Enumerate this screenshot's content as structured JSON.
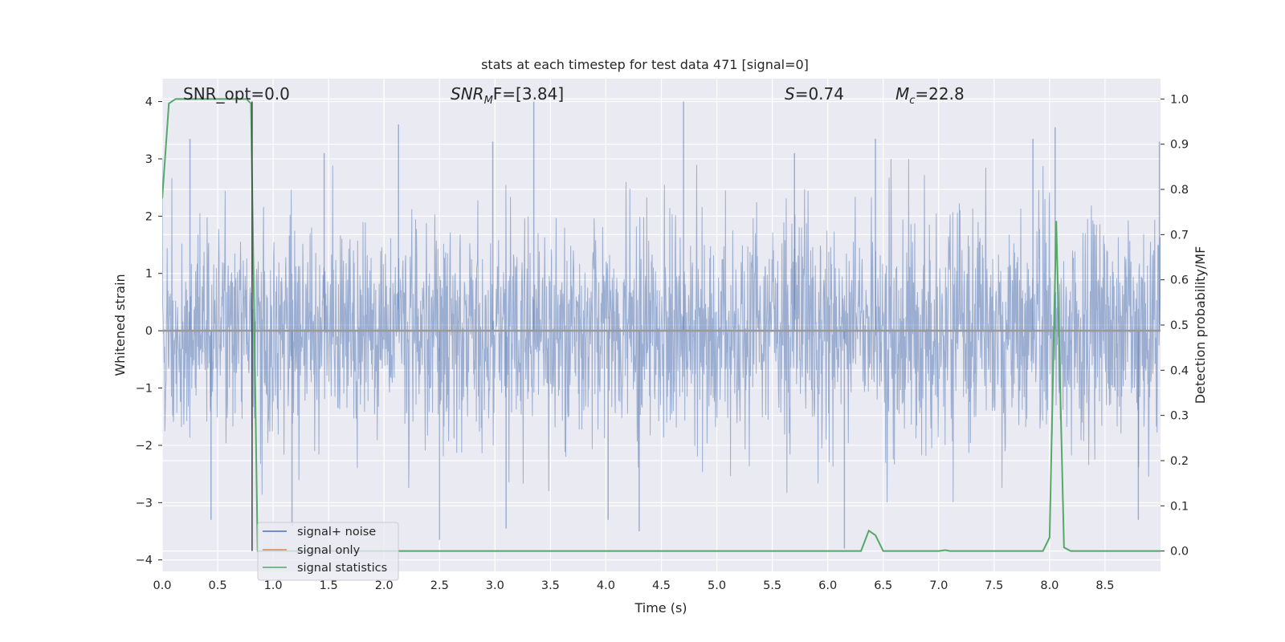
{
  "chart_data": {
    "type": "line",
    "title": "stats at each timestep for test data 471 [signal=0]",
    "xlabel": "Time (s)",
    "ylabel_left": "Whitened strain",
    "ylabel_right": "Detection probability/MF",
    "xlim": [
      0.0,
      9.0
    ],
    "ylim_left": [
      -4.2,
      4.4
    ],
    "ylim_right": [
      -0.045,
      1.045
    ],
    "grid": true,
    "x_ticks": [
      "0.0",
      "0.5",
      "1.0",
      "1.5",
      "2.0",
      "2.5",
      "3.0",
      "3.5",
      "4.0",
      "4.5",
      "5.0",
      "5.5",
      "6.0",
      "6.5",
      "7.0",
      "7.5",
      "8.0",
      "8.5"
    ],
    "y_ticks_left": [
      "−4",
      "−3",
      "−2",
      "−1",
      "0",
      "1",
      "2",
      "3",
      "4"
    ],
    "y_ticks_right": [
      "0.0",
      "0.1",
      "0.2",
      "0.3",
      "0.4",
      "0.5",
      "0.6",
      "0.7",
      "0.8",
      "0.9",
      "1.0"
    ],
    "legend_position": "lower-left",
    "annotations": {
      "snr_opt": "SNR_opt=0.0",
      "snr_mf_prefix": "SNR",
      "snr_mf_sub": "M",
      "snr_mf_suffix": "F=[3.84]",
      "s_prefix": "S",
      "s_value": "=0.74",
      "mc_prefix": "M",
      "mc_sub": "c",
      "mc_value": "=22.8"
    },
    "vline_x": 0.81,
    "series": [
      {
        "name": "signal+ noise",
        "color": "#4c72b0",
        "axis": "left",
        "kind": "noise",
        "approx_std": 0.95,
        "extreme_spikes": [
          {
            "x": 0.25,
            "y": 3.35
          },
          {
            "x": 1.46,
            "y": 3.1
          },
          {
            "x": 2.13,
            "y": 3.6
          },
          {
            "x": 2.98,
            "y": 3.3
          },
          {
            "x": 3.35,
            "y": 4.0
          },
          {
            "x": 4.7,
            "y": 4.0
          },
          {
            "x": 5.7,
            "y": 3.1
          },
          {
            "x": 6.43,
            "y": 3.35
          },
          {
            "x": 7.85,
            "y": 3.35
          },
          {
            "x": 8.05,
            "y": 3.55
          },
          {
            "x": 8.99,
            "y": 3.3
          },
          {
            "x": 0.44,
            "y": -3.3
          },
          {
            "x": 1.17,
            "y": -3.4
          },
          {
            "x": 2.5,
            "y": -3.65
          },
          {
            "x": 3.1,
            "y": -3.45
          },
          {
            "x": 4.02,
            "y": -3.3
          },
          {
            "x": 4.3,
            "y": -3.5
          },
          {
            "x": 6.15,
            "y": -3.8
          },
          {
            "x": 8.8,
            "y": -3.3
          }
        ]
      },
      {
        "name": "signal only",
        "color": "#dd8452",
        "axis": "left",
        "x": [
          0.0,
          9.0
        ],
        "y": [
          0.0,
          0.0
        ]
      },
      {
        "name": "signal statistics",
        "color": "#55a868",
        "axis": "right",
        "x": [
          0.0,
          0.06,
          0.12,
          0.2,
          0.3,
          0.5,
          0.7,
          0.76,
          0.8,
          0.83,
          0.86,
          0.9,
          1.0,
          6.3,
          6.37,
          6.43,
          6.5,
          7.0,
          7.06,
          7.1,
          7.94,
          8.0,
          8.06,
          8.13,
          8.19,
          9.0
        ],
        "y": [
          0.78,
          0.99,
          1.0,
          1.0,
          1.0,
          1.0,
          1.0,
          1.0,
          0.99,
          0.5,
          0.0,
          0.0,
          0.0,
          0.0,
          0.045,
          0.035,
          0.0,
          0.0,
          0.002,
          0.0,
          0.0,
          0.03,
          0.73,
          0.008,
          0.0,
          0.0
        ]
      }
    ]
  }
}
